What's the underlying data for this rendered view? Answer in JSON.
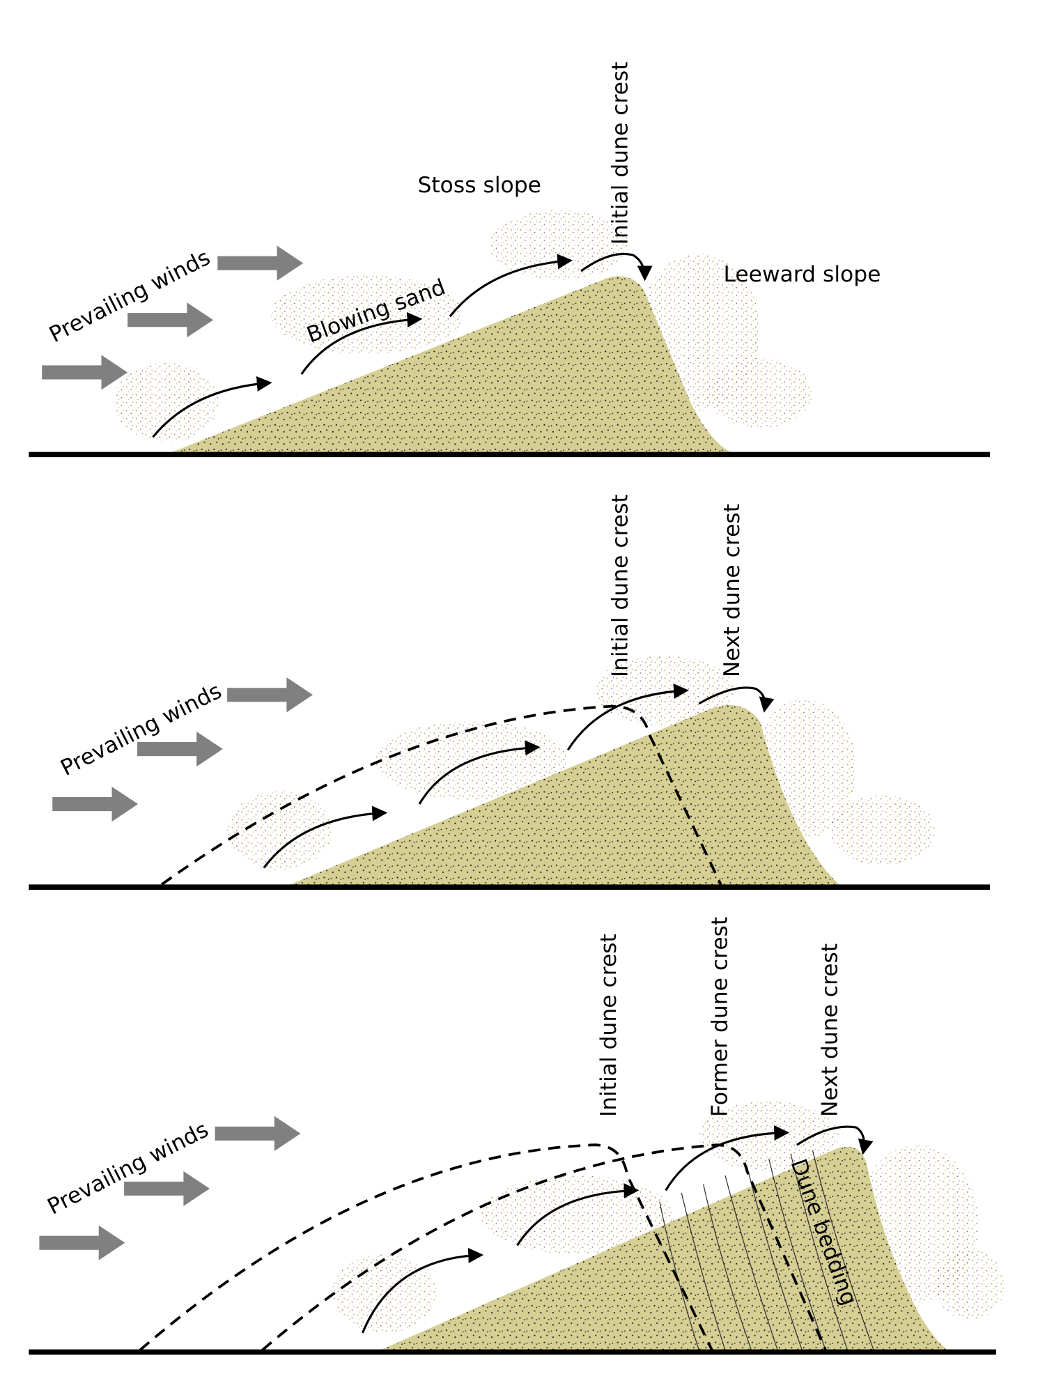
{
  "panels": [
    {
      "labels": {
        "winds": "Prevailing winds",
        "stoss": "Stoss slope",
        "blowing": "Blowing sand",
        "initial": "Initial dune crest",
        "leeward": "Leeward slope"
      }
    },
    {
      "labels": {
        "winds": "Prevailing winds",
        "initial": "Initial dune crest",
        "next": "Next dune crest"
      }
    },
    {
      "labels": {
        "winds": "Prevailing winds",
        "initial": "Initial dune crest",
        "former": "Former dune crest",
        "next": "Next dune crest",
        "bedding": "Dune bedding"
      }
    }
  ]
}
